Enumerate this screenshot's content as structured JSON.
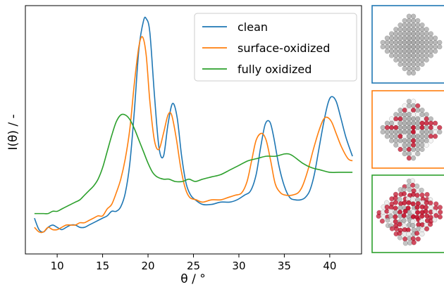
{
  "chart_data": {
    "type": "line",
    "xlabel": "θ / °",
    "ylabel": "I(θ) / -",
    "xlim": [
      6.5,
      43.5
    ],
    "ylim": [
      0,
      1
    ],
    "xticks": [
      "10",
      "15",
      "20",
      "25",
      "30",
      "35",
      "40"
    ],
    "yticks_shown": false,
    "grid": false,
    "legend_position": "top-right",
    "series": [
      {
        "name": "clean",
        "color": "#1f77b4",
        "points": [
          [
            7.5,
            0.11
          ],
          [
            8.0,
            0.06
          ],
          [
            8.5,
            0.05
          ],
          [
            9.0,
            0.07
          ],
          [
            9.5,
            0.08
          ],
          [
            10.0,
            0.07
          ],
          [
            10.5,
            0.06
          ],
          [
            11.0,
            0.07
          ],
          [
            11.5,
            0.08
          ],
          [
            12.0,
            0.08
          ],
          [
            12.5,
            0.07
          ],
          [
            13.0,
            0.07
          ],
          [
            13.5,
            0.08
          ],
          [
            14.0,
            0.09
          ],
          [
            14.5,
            0.1
          ],
          [
            15.0,
            0.11
          ],
          [
            15.5,
            0.12
          ],
          [
            16.0,
            0.14
          ],
          [
            16.5,
            0.14
          ],
          [
            17.0,
            0.16
          ],
          [
            17.5,
            0.22
          ],
          [
            18.0,
            0.35
          ],
          [
            18.5,
            0.58
          ],
          [
            19.0,
            0.85
          ],
          [
            19.5,
            0.97
          ],
          [
            19.8,
            0.98
          ],
          [
            20.2,
            0.92
          ],
          [
            20.7,
            0.65
          ],
          [
            21.2,
            0.42
          ],
          [
            21.7,
            0.38
          ],
          [
            22.2,
            0.52
          ],
          [
            22.7,
            0.61
          ],
          [
            23.2,
            0.55
          ],
          [
            23.7,
            0.38
          ],
          [
            24.2,
            0.26
          ],
          [
            24.7,
            0.21
          ],
          [
            25.2,
            0.19
          ],
          [
            26.0,
            0.17
          ],
          [
            27.0,
            0.17
          ],
          [
            28.0,
            0.18
          ],
          [
            29.0,
            0.18
          ],
          [
            29.8,
            0.19
          ],
          [
            30.6,
            0.21
          ],
          [
            31.3,
            0.23
          ],
          [
            31.9,
            0.3
          ],
          [
            32.4,
            0.42
          ],
          [
            32.9,
            0.52
          ],
          [
            33.4,
            0.53
          ],
          [
            33.8,
            0.47
          ],
          [
            34.4,
            0.34
          ],
          [
            35.0,
            0.25
          ],
          [
            35.6,
            0.2
          ],
          [
            36.2,
            0.19
          ],
          [
            36.8,
            0.19
          ],
          [
            37.3,
            0.2
          ],
          [
            37.8,
            0.23
          ],
          [
            38.3,
            0.3
          ],
          [
            38.8,
            0.41
          ],
          [
            39.3,
            0.52
          ],
          [
            39.8,
            0.61
          ],
          [
            40.2,
            0.64
          ],
          [
            40.7,
            0.62
          ],
          [
            41.2,
            0.55
          ],
          [
            41.8,
            0.46
          ],
          [
            42.5,
            0.38
          ]
        ]
      },
      {
        "name": "surface-oxidized",
        "color": "#ff7f0e",
        "points": [
          [
            7.5,
            0.07
          ],
          [
            8.0,
            0.05
          ],
          [
            8.5,
            0.05
          ],
          [
            9.0,
            0.07
          ],
          [
            9.5,
            0.06
          ],
          [
            10.0,
            0.06
          ],
          [
            10.5,
            0.07
          ],
          [
            11.0,
            0.08
          ],
          [
            11.5,
            0.08
          ],
          [
            12.0,
            0.08
          ],
          [
            12.5,
            0.09
          ],
          [
            13.0,
            0.09
          ],
          [
            13.5,
            0.1
          ],
          [
            14.0,
            0.11
          ],
          [
            14.5,
            0.12
          ],
          [
            15.0,
            0.12
          ],
          [
            15.5,
            0.15
          ],
          [
            16.0,
            0.17
          ],
          [
            16.5,
            0.22
          ],
          [
            17.0,
            0.28
          ],
          [
            17.5,
            0.37
          ],
          [
            18.0,
            0.5
          ],
          [
            18.5,
            0.7
          ],
          [
            19.0,
            0.86
          ],
          [
            19.4,
            0.9
          ],
          [
            19.8,
            0.82
          ],
          [
            20.2,
            0.62
          ],
          [
            20.7,
            0.45
          ],
          [
            21.2,
            0.41
          ],
          [
            21.7,
            0.48
          ],
          [
            22.2,
            0.56
          ],
          [
            22.6,
            0.56
          ],
          [
            23.1,
            0.46
          ],
          [
            23.6,
            0.33
          ],
          [
            24.1,
            0.24
          ],
          [
            24.6,
            0.2
          ],
          [
            25.3,
            0.19
          ],
          [
            26.0,
            0.18
          ],
          [
            27.0,
            0.19
          ],
          [
            28.0,
            0.19
          ],
          [
            28.8,
            0.2
          ],
          [
            29.6,
            0.21
          ],
          [
            30.3,
            0.22
          ],
          [
            30.9,
            0.27
          ],
          [
            31.4,
            0.36
          ],
          [
            31.9,
            0.45
          ],
          [
            32.5,
            0.48
          ],
          [
            33.0,
            0.45
          ],
          [
            33.5,
            0.36
          ],
          [
            34.0,
            0.26
          ],
          [
            34.6,
            0.22
          ],
          [
            35.2,
            0.21
          ],
          [
            35.8,
            0.21
          ],
          [
            36.5,
            0.22
          ],
          [
            37.0,
            0.25
          ],
          [
            37.6,
            0.32
          ],
          [
            38.2,
            0.41
          ],
          [
            38.8,
            0.49
          ],
          [
            39.3,
            0.54
          ],
          [
            39.7,
            0.55
          ],
          [
            40.2,
            0.53
          ],
          [
            40.7,
            0.48
          ],
          [
            41.3,
            0.42
          ],
          [
            42.0,
            0.37
          ],
          [
            42.5,
            0.36
          ]
        ]
      },
      {
        "name": "fully oxidized",
        "color": "#2ca02c",
        "points": [
          [
            7.5,
            0.13
          ],
          [
            8.0,
            0.13
          ],
          [
            8.5,
            0.13
          ],
          [
            9.0,
            0.13
          ],
          [
            9.5,
            0.14
          ],
          [
            10.0,
            0.14
          ],
          [
            10.5,
            0.15
          ],
          [
            11.0,
            0.16
          ],
          [
            11.5,
            0.17
          ],
          [
            12.0,
            0.18
          ],
          [
            12.5,
            0.19
          ],
          [
            13.0,
            0.21
          ],
          [
            13.5,
            0.23
          ],
          [
            14.0,
            0.25
          ],
          [
            14.5,
            0.28
          ],
          [
            15.0,
            0.33
          ],
          [
            15.5,
            0.4
          ],
          [
            16.0,
            0.47
          ],
          [
            16.5,
            0.53
          ],
          [
            17.0,
            0.56
          ],
          [
            17.5,
            0.56
          ],
          [
            18.0,
            0.54
          ],
          [
            18.5,
            0.5
          ],
          [
            19.0,
            0.45
          ],
          [
            19.5,
            0.4
          ],
          [
            20.0,
            0.35
          ],
          [
            20.5,
            0.31
          ],
          [
            21.0,
            0.29
          ],
          [
            21.7,
            0.28
          ],
          [
            22.3,
            0.28
          ],
          [
            23.0,
            0.27
          ],
          [
            23.8,
            0.27
          ],
          [
            24.5,
            0.28
          ],
          [
            25.2,
            0.27
          ],
          [
            26.0,
            0.28
          ],
          [
            27.0,
            0.29
          ],
          [
            28.0,
            0.3
          ],
          [
            29.0,
            0.32
          ],
          [
            30.0,
            0.34
          ],
          [
            31.0,
            0.36
          ],
          [
            32.0,
            0.37
          ],
          [
            33.0,
            0.38
          ],
          [
            34.0,
            0.38
          ],
          [
            35.0,
            0.39
          ],
          [
            35.5,
            0.39
          ],
          [
            36.0,
            0.38
          ],
          [
            37.0,
            0.35
          ],
          [
            38.0,
            0.33
          ],
          [
            39.0,
            0.32
          ],
          [
            40.0,
            0.31
          ],
          [
            41.0,
            0.31
          ],
          [
            42.0,
            0.31
          ],
          [
            42.5,
            0.31
          ]
        ]
      }
    ]
  },
  "insets": [
    {
      "name": "clean",
      "border_color": "#1f77b4",
      "particle_color": "#9e9e9e",
      "oxide_fraction": 0.0
    },
    {
      "name": "surface-oxidized",
      "border_color": "#ff7f0e",
      "particle_color": "#9e9e9e",
      "oxide_fraction": 0.35
    },
    {
      "name": "fully oxidized",
      "border_color": "#2ca02c",
      "particle_color": "#c01030",
      "oxide_fraction": 0.6
    }
  ]
}
